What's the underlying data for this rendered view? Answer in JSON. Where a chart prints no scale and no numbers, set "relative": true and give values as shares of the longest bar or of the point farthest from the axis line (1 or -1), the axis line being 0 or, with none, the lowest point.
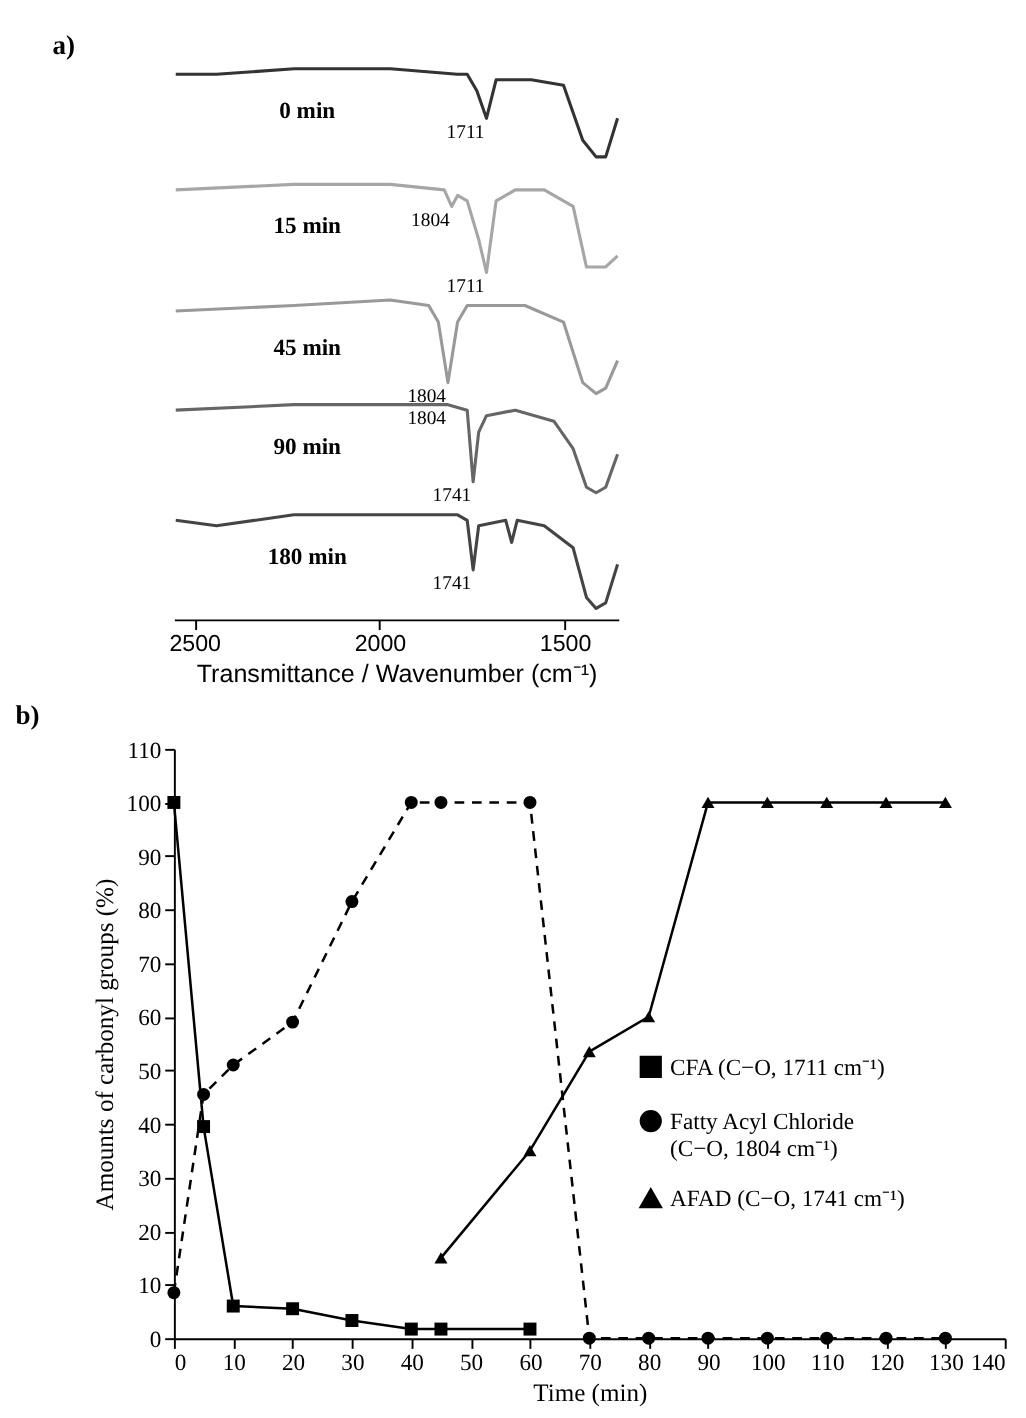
{
  "chart_data": [
    {
      "type": "line",
      "title": "a)",
      "xlabel": "Transmittance / Wavenumber (cm⁻¹)",
      "relative": true,
      "xlim": [
        2555,
        1355
      ],
      "xticks": [
        2500,
        2000,
        1500
      ],
      "grid": false,
      "legend": false,
      "marker": "none",
      "line_style": "solid",
      "series": [
        {
          "name": "0 min",
          "color": "#333333",
          "x": [
            2550,
            2440,
            2230,
            1970,
            1790,
            1763,
            1737,
            1711,
            1685,
            1590,
            1503,
            1451,
            1415,
            1389,
            1357
          ],
          "values": [
            0.99,
            0.99,
            1.0,
            1.0,
            0.99,
            0.99,
            0.96,
            0.91,
            0.98,
            0.98,
            0.97,
            0.87,
            0.84,
            0.84,
            0.91
          ]
        },
        {
          "name": "15 min",
          "color": "#a6a6a6",
          "x": [
            2550,
            2231,
            1971,
            1825,
            1805,
            1789,
            1763,
            1732,
            1711,
            1685,
            1633,
            1555,
            1477,
            1441,
            1389,
            1357
          ],
          "values": [
            0.78,
            0.79,
            0.79,
            0.78,
            0.75,
            0.77,
            0.76,
            0.69,
            0.63,
            0.76,
            0.78,
            0.78,
            0.75,
            0.64,
            0.64,
            0.66
          ]
        },
        {
          "name": "45 min",
          "color": "#999999",
          "x": [
            2550,
            2231,
            1971,
            1867,
            1841,
            1815,
            1789,
            1763,
            1607,
            1503,
            1451,
            1415,
            1389,
            1357
          ],
          "values": [
            0.56,
            0.57,
            0.58,
            0.57,
            0.54,
            0.43,
            0.54,
            0.57,
            0.57,
            0.54,
            0.43,
            0.41,
            0.42,
            0.47
          ]
        },
        {
          "name": "90 min",
          "color": "#666666",
          "x": [
            2550,
            2231,
            1971,
            1815,
            1763,
            1747,
            1732,
            1711,
            1633,
            1529,
            1477,
            1441,
            1415,
            1389,
            1357
          ],
          "values": [
            0.38,
            0.39,
            0.39,
            0.39,
            0.38,
            0.25,
            0.34,
            0.37,
            0.38,
            0.36,
            0.31,
            0.24,
            0.23,
            0.24,
            0.3
          ]
        },
        {
          "name": "180 min",
          "color": "#444444",
          "x": [
            2550,
            2440,
            2231,
            1971,
            1789,
            1763,
            1747,
            1732,
            1659,
            1643,
            1628,
            1555,
            1477,
            1441,
            1415,
            1389,
            1357
          ],
          "values": [
            0.18,
            0.17,
            0.19,
            0.19,
            0.19,
            0.18,
            0.09,
            0.17,
            0.18,
            0.14,
            0.18,
            0.17,
            0.13,
            0.04,
            0.02,
            0.03,
            0.1
          ]
        }
      ],
      "annotations": [
        {
          "text": "1711",
          "x": 1711,
          "y": 0.91
        },
        {
          "text": "1804",
          "x": 1805,
          "y": 0.75
        },
        {
          "text": "1711",
          "x": 1711,
          "y": 0.63
        },
        {
          "text": "1804",
          "x": 1815,
          "y": 0.43
        },
        {
          "text": "1804",
          "x": 1815,
          "y": 0.39
        },
        {
          "text": "1741",
          "x": 1747,
          "y": 0.25
        },
        {
          "text": "1741",
          "x": 1747,
          "y": 0.09
        }
      ]
    },
    {
      "type": "line",
      "title": "b)",
      "xlabel": "Time (min)",
      "ylabel": "Amounts of carbonyl groups (%)",
      "xlim": [
        0,
        140
      ],
      "xticks": [
        0,
        10,
        20,
        30,
        40,
        50,
        60,
        70,
        80,
        90,
        100,
        110,
        120,
        130,
        140
      ],
      "ylim": [
        0,
        110
      ],
      "yticks": [
        0,
        10,
        20,
        30,
        40,
        50,
        60,
        70,
        80,
        90,
        100,
        110
      ],
      "grid": false,
      "legend": "right",
      "series": [
        {
          "name": "CFA (C−O, 1711 cm⁻¹)",
          "color": "#000000",
          "marker": "square",
          "line_style": "solid",
          "x": [
            0,
            5,
            10,
            20,
            30,
            40,
            45,
            60
          ],
          "values": [
            100,
            39.5,
            6,
            5.5,
            3.3,
            1.7,
            1.7,
            1.7
          ]
        },
        {
          "name": "Fatty Acyl Chloride (C−O, 1804 cm⁻¹)",
          "color": "#000000",
          "marker": "circle",
          "line_style": "dashed",
          "x": [
            0,
            5,
            10,
            20,
            30,
            40,
            45,
            60,
            70,
            80,
            90,
            100,
            110,
            120,
            130
          ],
          "values": [
            8.5,
            45.5,
            51,
            59,
            81.5,
            100,
            100,
            100,
            0,
            0,
            0,
            0,
            0,
            0,
            0
          ]
        },
        {
          "name": "AFAD (C−O, 1741 cm⁻¹)",
          "color": "#000000",
          "marker": "triangle",
          "line_style": "solid",
          "x": [
            45,
            60,
            70,
            80,
            90,
            100,
            110,
            120,
            130
          ],
          "values": [
            15,
            35,
            53.5,
            60,
            100,
            100,
            100,
            100,
            100
          ]
        }
      ]
    }
  ]
}
